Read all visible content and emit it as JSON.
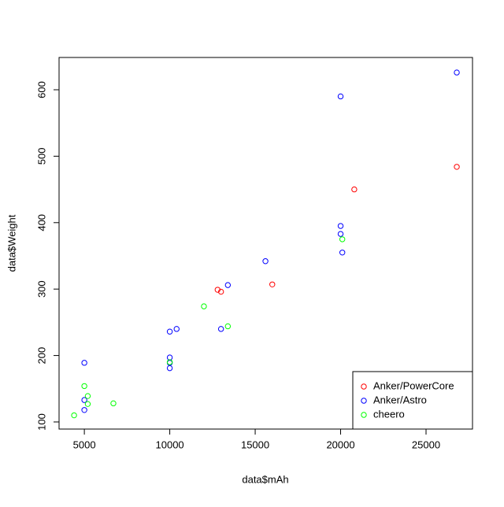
{
  "chart_data": {
    "type": "scatter",
    "x_label": "data$mAh",
    "y_label": "data$Weight",
    "xlim": [
      3520,
      27720
    ],
    "ylim": [
      89.3,
      648.6
    ],
    "xticks": [
      5000,
      10000,
      15000,
      20000,
      25000
    ],
    "yticks": [
      100,
      200,
      300,
      400,
      500,
      600
    ],
    "grid": false,
    "legend": "bottomright",
    "series": [
      {
        "name": "Anker/PowerCore",
        "color": "#ff0000",
        "x": [
          26800,
          20800,
          16000,
          12800,
          13000
        ],
        "values": [
          484,
          450,
          307,
          299,
          296
        ]
      },
      {
        "name": "Anker/Astro",
        "color": "#0000ff",
        "x": [
          26800,
          20000,
          20000,
          20000,
          20100,
          15600,
          13400,
          13000,
          10400,
          10000,
          10000,
          10000,
          10000,
          5000,
          5000,
          5000
        ],
        "values": [
          626,
          590,
          395,
          383,
          355,
          342,
          306,
          240,
          240,
          236,
          197,
          189,
          181,
          189,
          133,
          118
        ]
      },
      {
        "name": "cheero",
        "color": "#00ff00",
        "x": [
          20100,
          12000,
          13400,
          10000,
          5000,
          5200,
          5200,
          6700,
          4400
        ],
        "values": [
          375,
          274,
          244,
          190,
          154,
          139,
          127,
          128,
          110
        ]
      }
    ]
  }
}
